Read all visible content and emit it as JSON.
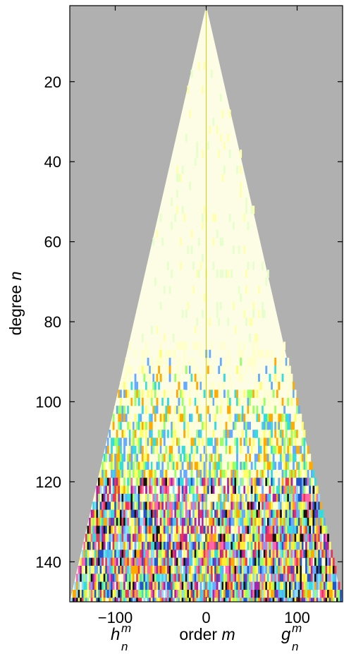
{
  "chart_data": {
    "type": "heatmap",
    "title": "",
    "description_kind": "spherical harmonic coefficient spectrum (triangular)",
    "xlabel": {
      "prefix": "order ",
      "var": "m"
    },
    "ylabel": {
      "prefix": "degree ",
      "var": "n"
    },
    "x_side_labels": {
      "left": {
        "base": "h",
        "sup": "m",
        "sub": "n"
      },
      "right": {
        "base": "g",
        "sup": "m",
        "sub": "n"
      }
    },
    "xlim": [
      -150,
      150
    ],
    "ylim": [
      1,
      150
    ],
    "y_reversed": true,
    "xticks": [
      -100,
      0,
      100
    ],
    "xtick_labels": [
      "−100",
      "0",
      "100"
    ],
    "yticks": [
      20,
      40,
      60,
      80,
      100,
      120,
      140
    ],
    "ytick_labels": [
      "20",
      "40",
      "60",
      "80",
      "100",
      "120",
      "140"
    ],
    "domain": "|m| <= n",
    "background_color": "#b0b0b0",
    "triangle_base_color": "#fdfde6",
    "noise_onset_degree": 85,
    "noise_palette": [
      "#ffff66",
      "#99ff66",
      "#33dddd",
      "#66aaff",
      "#ffaa00",
      "#ee3355",
      "#aa22aa",
      "#111111",
      "#2255cc",
      "#ffee33",
      "#88ddff",
      "#ff66aa"
    ],
    "center_line_color": "#c8c800"
  }
}
